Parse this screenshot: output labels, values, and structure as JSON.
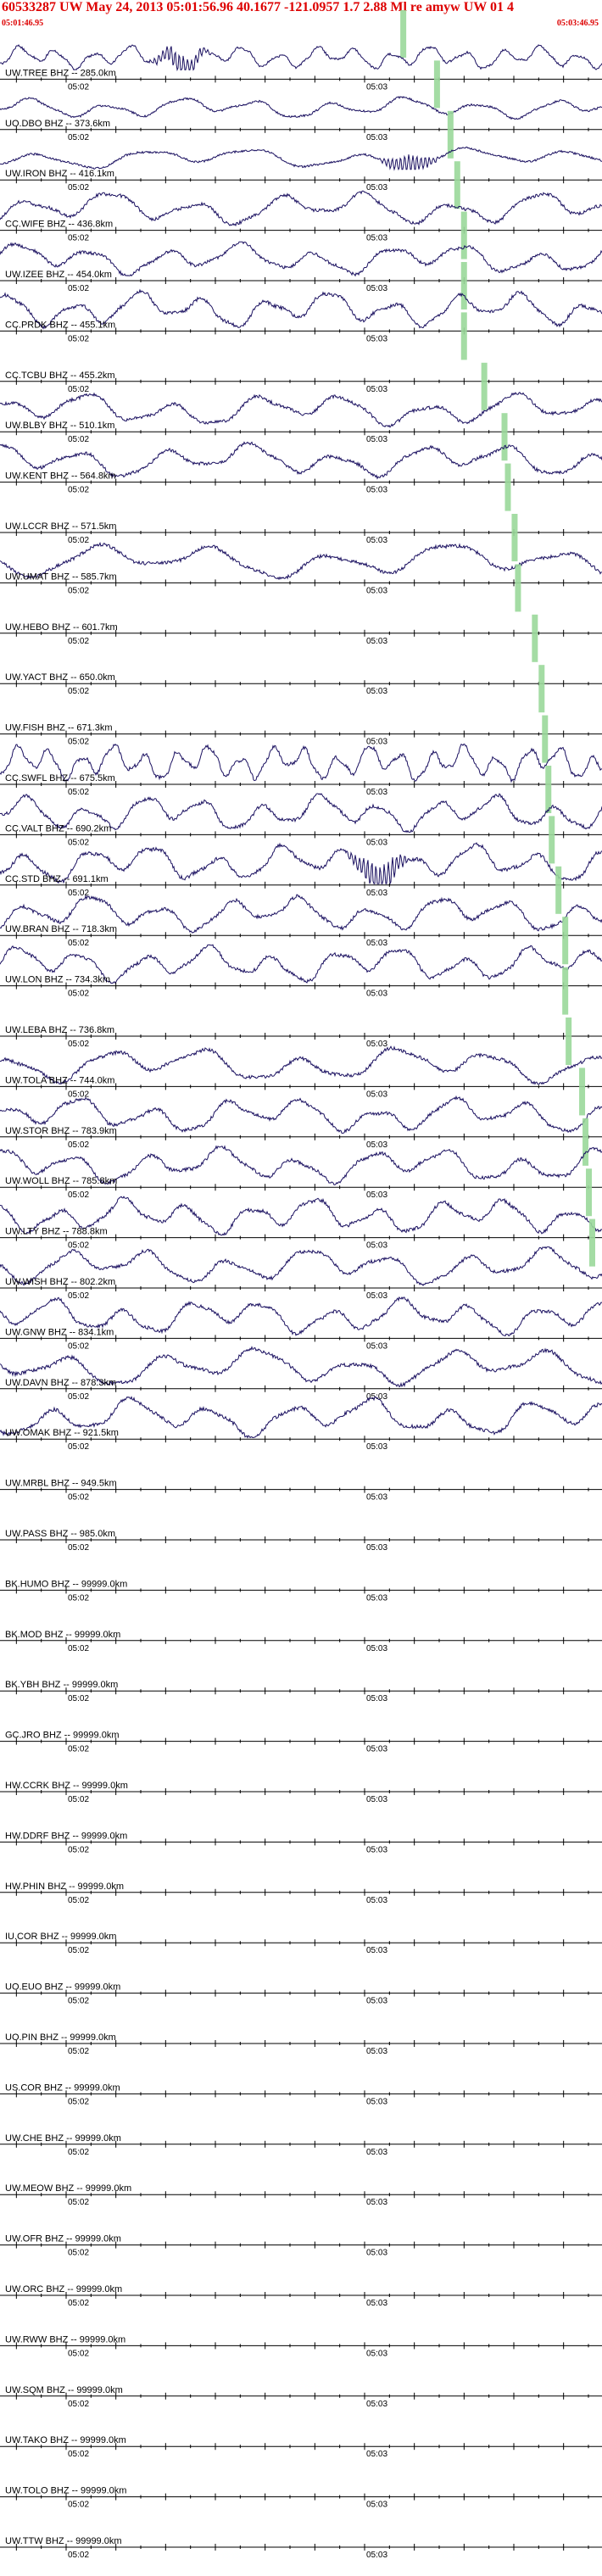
{
  "header": {
    "title": "60533287 UW May 24, 2013 05:01:56.96   40.1677 -121.0957  1.7 2.88 Ml re amyw UW 01   4",
    "start_time": "05:01:46.95",
    "end_time": "05:03:46.95"
  },
  "colors": {
    "header_text": "#dd0000",
    "trace": "#1a1060",
    "pick": "#9ad89a",
    "axis": "#000000"
  },
  "chart_data": {
    "type": "line",
    "title": "60533287 UW May 24, 2013 05:01:56.96   40.1677 -121.0957  1.7 2.88 Ml re amyw UW 01   4",
    "xlabel": "",
    "ylabel": "",
    "x_start": "05:01:46.95",
    "x_end": "05:03:46.95",
    "minute_ticks": [
      "05:02",
      "05:03"
    ],
    "grid": false,
    "traces": [
      {
        "station": "UW.TREE BHZ -- 285.0km",
        "has_data": true,
        "amplitude": 0.55,
        "period": 7,
        "burst": 0.3,
        "pick_frac": 0.44
      },
      {
        "station": "UO.DBO BHZ -- 373.6km",
        "has_data": true,
        "amplitude": 0.5,
        "period": 14,
        "burst": 0,
        "pick_frac": 0.54
      },
      {
        "station": "UW.IRON BHZ -- 416.1km",
        "has_data": true,
        "amplitude": 0.5,
        "period": 20,
        "burst": 0.68,
        "pick_frac": 0.58
      },
      {
        "station": "CC.WIFE BHZ -- 436.8km",
        "has_data": true,
        "amplitude": 0.8,
        "period": 16,
        "burst": 0,
        "pick_frac": 0.6
      },
      {
        "station": "UW.IZEE BHZ -- 454.0km",
        "has_data": true,
        "amplitude": 0.75,
        "period": 14,
        "burst": 0,
        "pick_frac": 0.62
      },
      {
        "station": "CC.PRDK BHZ -- 455.1km",
        "has_data": true,
        "amplitude": 0.85,
        "period": 12,
        "burst": 0,
        "pick_frac": 0.62
      },
      {
        "station": "CC.TCBU BHZ -- 455.2km",
        "has_data": false,
        "amplitude": 0,
        "period": 0,
        "burst": 0,
        "pick_frac": 0.62
      },
      {
        "station": "UW.BLBY BHZ -- 510.1km",
        "has_data": true,
        "amplitude": 0.8,
        "period": 16,
        "burst": 0,
        "pick_frac": 0.68
      },
      {
        "station": "UW.KENT BHZ -- 564.8km",
        "has_data": true,
        "amplitude": 0.8,
        "period": 16,
        "burst": 0,
        "pick_frac": 0.74
      },
      {
        "station": "UW.LCCR BHZ -- 571.5km",
        "has_data": false,
        "amplitude": 0,
        "period": 0,
        "burst": 0,
        "pick_frac": 0.75
      },
      {
        "station": "UW.UMAT BHZ -- 585.7km",
        "has_data": true,
        "amplitude": 0.85,
        "period": 22,
        "burst": 0,
        "pick_frac": 0.77
      },
      {
        "station": "UW.HEBO BHZ -- 601.7km",
        "has_data": false,
        "amplitude": 0,
        "period": 0,
        "burst": 0,
        "pick_frac": 0.78
      },
      {
        "station": "UW.YACT BHZ -- 650.0km",
        "has_data": false,
        "amplitude": 0,
        "period": 0,
        "burst": 0,
        "pick_frac": 0.83
      },
      {
        "station": "UW.FISH BHZ -- 671.3km",
        "has_data": false,
        "amplitude": 0,
        "period": 0,
        "burst": 0,
        "pick_frac": 0.85
      },
      {
        "station": "CC.SWFL BHZ -- 675.5km",
        "has_data": true,
        "amplitude": 0.85,
        "period": 6,
        "burst": 0,
        "pick_frac": 0.86
      },
      {
        "station": "CC.VALT BHZ -- 690.2km",
        "has_data": true,
        "amplitude": 0.85,
        "period": 11,
        "burst": 0,
        "pick_frac": 0.87
      },
      {
        "station": "CC.STD BHZ -- 691.1km",
        "has_data": true,
        "amplitude": 0.9,
        "period": 12,
        "burst": 0.63,
        "pick_frac": 0.88
      },
      {
        "station": "UW.BRAN BHZ -- 718.3km",
        "has_data": true,
        "amplitude": 0.85,
        "period": 13,
        "burst": 0,
        "pick_frac": 0.9
      },
      {
        "station": "UW.LON BHZ -- 734.3km",
        "has_data": true,
        "amplitude": 0.85,
        "period": 12,
        "burst": 0,
        "pick_frac": 0.92
      },
      {
        "station": "UW.LEBA BHZ -- 736.8km",
        "has_data": false,
        "amplitude": 0,
        "period": 0,
        "burst": 0,
        "pick_frac": 0.92
      },
      {
        "station": "UW.TOLA BHZ -- 744.0km",
        "has_data": true,
        "amplitude": 0.85,
        "period": 18,
        "burst": 0,
        "pick_frac": 0.93
      },
      {
        "station": "UW.STOR BHZ -- 783.9km",
        "has_data": true,
        "amplitude": 0.85,
        "period": 14,
        "burst": 0,
        "pick_frac": 0.97
      },
      {
        "station": "UW.WOLL BHZ -- 785.8km",
        "has_data": true,
        "amplitude": 0.85,
        "period": 14,
        "burst": 0,
        "pick_frac": 0.98
      },
      {
        "station": "UW.LTY BHZ -- 788.8km",
        "has_data": true,
        "amplitude": 0.85,
        "period": 12,
        "burst": 0,
        "pick_frac": 0.99
      },
      {
        "station": "UW.WISH BHZ -- 802.2km",
        "has_data": true,
        "amplitude": 0.85,
        "period": 15,
        "burst": 0,
        "pick_frac": 1.0
      },
      {
        "station": "UW.GNW BHZ -- 834.1km",
        "has_data": true,
        "amplitude": 0.85,
        "period": 13,
        "burst": 0,
        "pick_frac": null
      },
      {
        "station": "UW.DAVN BHZ -- 878.3km",
        "has_data": true,
        "amplitude": 0.9,
        "period": 18,
        "burst": 0,
        "pick_frac": null
      },
      {
        "station": "UW.OMAK BHZ -- 921.5km",
        "has_data": true,
        "amplitude": 0.9,
        "period": 15,
        "burst": 0,
        "pick_frac": null
      },
      {
        "station": "UW.MRBL BHZ -- 949.5km",
        "has_data": false,
        "amplitude": 0,
        "period": 0,
        "burst": 0,
        "pick_frac": null
      },
      {
        "station": "UW.PASS BHZ -- 985.0km",
        "has_data": false,
        "amplitude": 0,
        "period": 0,
        "burst": 0,
        "pick_frac": null
      },
      {
        "station": "BK.HUMO BHZ -- 99999.0km",
        "has_data": false,
        "amplitude": 0,
        "period": 0,
        "burst": 0,
        "pick_frac": null
      },
      {
        "station": "BK.MOD BHZ -- 99999.0km",
        "has_data": false,
        "amplitude": 0,
        "period": 0,
        "burst": 0,
        "pick_frac": null
      },
      {
        "station": "BK.YBH BHZ -- 99999.0km",
        "has_data": false,
        "amplitude": 0,
        "period": 0,
        "burst": 0,
        "pick_frac": null
      },
      {
        "station": "GC.JRO BHZ -- 99999.0km",
        "has_data": false,
        "amplitude": 0,
        "period": 0,
        "burst": 0,
        "pick_frac": null
      },
      {
        "station": "HW.CCRK BHZ -- 99999.0km",
        "has_data": false,
        "amplitude": 0,
        "period": 0,
        "burst": 0,
        "pick_frac": null
      },
      {
        "station": "HW.DDRF BHZ -- 99999.0km",
        "has_data": false,
        "amplitude": 0,
        "period": 0,
        "burst": 0,
        "pick_frac": null
      },
      {
        "station": "HW.PHIN BHZ -- 99999.0km",
        "has_data": false,
        "amplitude": 0,
        "period": 0,
        "burst": 0,
        "pick_frac": null
      },
      {
        "station": "IU.COR BHZ -- 99999.0km",
        "has_data": false,
        "amplitude": 0,
        "period": 0,
        "burst": 0,
        "pick_frac": null
      },
      {
        "station": "UO.EUO BHZ -- 99999.0km",
        "has_data": false,
        "amplitude": 0,
        "period": 0,
        "burst": 0,
        "pick_frac": null
      },
      {
        "station": "UO.PIN BHZ -- 99999.0km",
        "has_data": false,
        "amplitude": 0,
        "period": 0,
        "burst": 0,
        "pick_frac": null
      },
      {
        "station": "US.COR BHZ -- 99999.0km",
        "has_data": false,
        "amplitude": 0,
        "period": 0,
        "burst": 0,
        "pick_frac": null
      },
      {
        "station": "UW.CHE BHZ -- 99999.0km",
        "has_data": false,
        "amplitude": 0,
        "period": 0,
        "burst": 0,
        "pick_frac": null
      },
      {
        "station": "UW.MEOW BHZ -- 99999.0km",
        "has_data": false,
        "amplitude": 0,
        "period": 0,
        "burst": 0,
        "pick_frac": null
      },
      {
        "station": "UW.OFR BHZ -- 99999.0km",
        "has_data": false,
        "amplitude": 0,
        "period": 0,
        "burst": 0,
        "pick_frac": null
      },
      {
        "station": "UW.ORC BHZ -- 99999.0km",
        "has_data": false,
        "amplitude": 0,
        "period": 0,
        "burst": 0,
        "pick_frac": null
      },
      {
        "station": "UW.RWW BHZ -- 99999.0km",
        "has_data": false,
        "amplitude": 0,
        "period": 0,
        "burst": 0,
        "pick_frac": null
      },
      {
        "station": "UW.SQM BHZ -- 99999.0km",
        "has_data": false,
        "amplitude": 0,
        "period": 0,
        "burst": 0,
        "pick_frac": null
      },
      {
        "station": "UW.TAKO BHZ -- 99999.0km",
        "has_data": false,
        "amplitude": 0,
        "period": 0,
        "burst": 0,
        "pick_frac": null
      },
      {
        "station": "UW.TOLO BHZ -- 99999.0km",
        "has_data": false,
        "amplitude": 0,
        "period": 0,
        "burst": 0,
        "pick_frac": null
      },
      {
        "station": "UW.TTW BHZ -- 99999.0km",
        "has_data": false,
        "amplitude": 0,
        "period": 0,
        "burst": 0,
        "pick_frac": null
      }
    ]
  }
}
